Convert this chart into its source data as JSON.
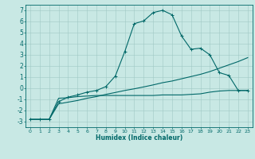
{
  "xlabel": "Humidex (Indice chaleur)",
  "xlim": [
    -0.5,
    23.5
  ],
  "ylim": [
    -3.5,
    7.5
  ],
  "xticks": [
    0,
    1,
    2,
    3,
    4,
    5,
    6,
    7,
    8,
    9,
    10,
    11,
    12,
    13,
    14,
    15,
    16,
    17,
    18,
    19,
    20,
    21,
    22,
    23
  ],
  "yticks": [
    -3,
    -2,
    -1,
    0,
    1,
    2,
    3,
    4,
    5,
    6,
    7
  ],
  "bg_color": "#c8e8e4",
  "line_color": "#006868",
  "grid_color": "#a0c8c4",
  "line1_x": [
    0,
    1,
    2,
    3,
    4,
    5,
    6,
    7,
    8,
    9,
    10,
    11,
    12,
    13,
    14,
    15,
    16,
    17,
    18,
    19,
    20,
    21,
    22,
    23
  ],
  "line1_y": [
    -2.8,
    -2.8,
    -2.8,
    -1.2,
    -0.8,
    -0.6,
    -0.35,
    -0.2,
    0.15,
    1.1,
    3.3,
    5.8,
    6.05,
    6.8,
    7.0,
    6.6,
    4.7,
    3.5,
    3.6,
    3.0,
    1.4,
    1.15,
    -0.2,
    -0.2
  ],
  "line2_x": [
    0,
    1,
    2,
    3,
    4,
    5,
    6,
    7,
    8,
    9,
    10,
    11,
    12,
    13,
    14,
    15,
    16,
    17,
    18,
    19,
    20,
    21,
    22,
    23
  ],
  "line2_y": [
    -2.8,
    -2.8,
    -2.8,
    -0.9,
    -0.85,
    -0.75,
    -0.7,
    -0.65,
    -0.65,
    -0.65,
    -0.65,
    -0.65,
    -0.65,
    -0.65,
    -0.6,
    -0.6,
    -0.6,
    -0.55,
    -0.5,
    -0.35,
    -0.25,
    -0.2,
    -0.2,
    -0.2
  ],
  "line3_x": [
    0,
    1,
    2,
    3,
    4,
    5,
    6,
    7,
    8,
    9,
    10,
    11,
    12,
    13,
    14,
    15,
    16,
    17,
    18,
    19,
    20,
    21,
    22,
    23
  ],
  "line3_y": [
    -2.8,
    -2.8,
    -2.8,
    -1.4,
    -1.25,
    -1.1,
    -0.9,
    -0.75,
    -0.55,
    -0.38,
    -0.2,
    -0.05,
    0.12,
    0.3,
    0.5,
    0.65,
    0.85,
    1.05,
    1.25,
    1.5,
    1.8,
    2.1,
    2.4,
    2.75
  ]
}
